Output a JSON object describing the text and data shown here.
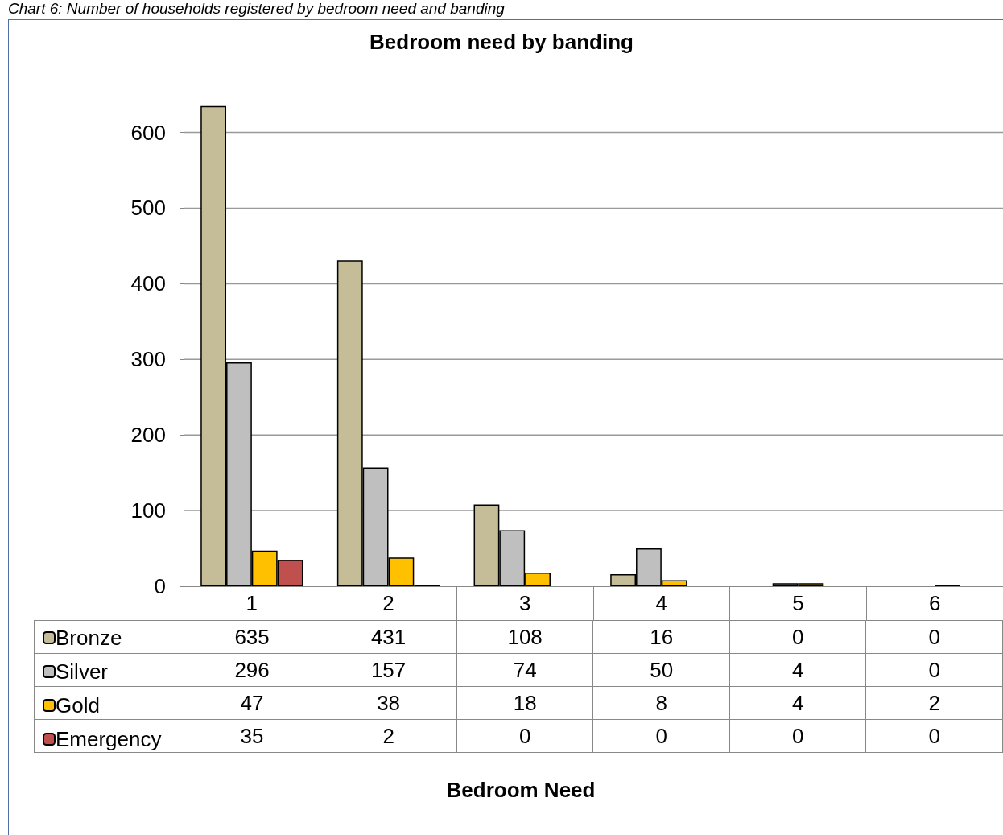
{
  "chart_data": {
    "type": "bar",
    "title": "Bedroom need by banding",
    "annotations": [
      "Chart 6: Number of households registered by bedroom need and banding",
      "Bedroom Need"
    ],
    "categories": [
      "1",
      "2",
      "3",
      "4",
      "5",
      "6"
    ],
    "series": [
      {
        "name": "Bronze",
        "color": "#c4bd97",
        "values": [
          635,
          431,
          108,
          16,
          0,
          0
        ]
      },
      {
        "name": "Silver",
        "color": "#bfbfbf",
        "values": [
          296,
          157,
          74,
          50,
          4,
          0
        ]
      },
      {
        "name": "Gold",
        "color": "#ffc000",
        "values": [
          47,
          38,
          18,
          8,
          4,
          2
        ]
      },
      {
        "name": "Emergency",
        "color": "#c0504d",
        "values": [
          35,
          2,
          0,
          0,
          0,
          0
        ]
      }
    ],
    "ylim": [
      0,
      640
    ],
    "yticks": [
      0,
      100,
      200,
      300,
      400,
      500,
      600
    ],
    "grid": "y",
    "legend": "bottom left",
    "data_labels": true
  }
}
